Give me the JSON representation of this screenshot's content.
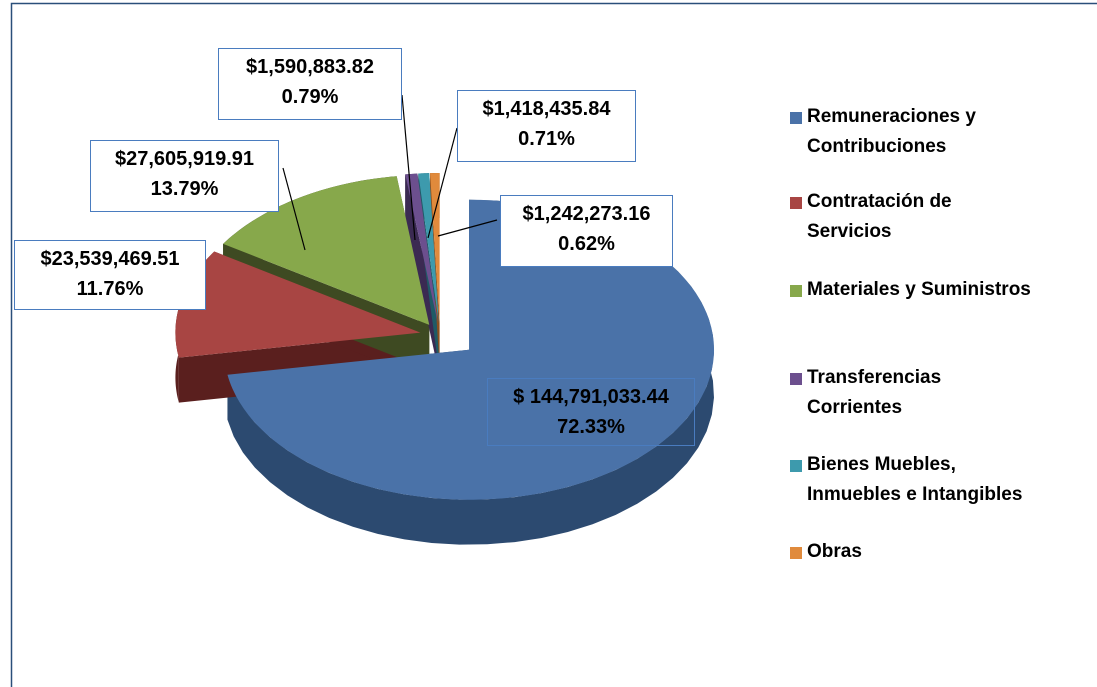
{
  "chart_data": {
    "type": "pie",
    "categories": [
      "Remuneraciones y\nContribuciones",
      "Contratación de\nServicios",
      "Materiales y Suministros",
      "Transferencias\nCorrientes",
      "Bienes Muebles,\nInmuebles e Intangibles",
      "Obras"
    ],
    "values": [
      144791033.44,
      23539469.51,
      27605919.91,
      1590883.82,
      1418435.84,
      1242273.16
    ],
    "value_labels": [
      "$ 144,791,033.44",
      "$23,539,469.51",
      "$27,605,919.91",
      "$1,590,883.82",
      "$1,418,435.84",
      "$1,242,273.16"
    ],
    "percent_labels": [
      "72.33%",
      "11.76%",
      "13.79%",
      "0.79%",
      "0.71%",
      "0.62%"
    ],
    "colors": [
      "#4a72a8",
      "#a84543",
      "#87a84b",
      "#6c4f8e",
      "#3d9aad",
      "#e08a3c"
    ],
    "side_colors": [
      "#2c4a70",
      "#5a1f1e",
      "#3e4a22",
      "#3b2a52",
      "#1f5a66",
      "#8a4f1e"
    ],
    "legend": "right",
    "exploded": true
  }
}
